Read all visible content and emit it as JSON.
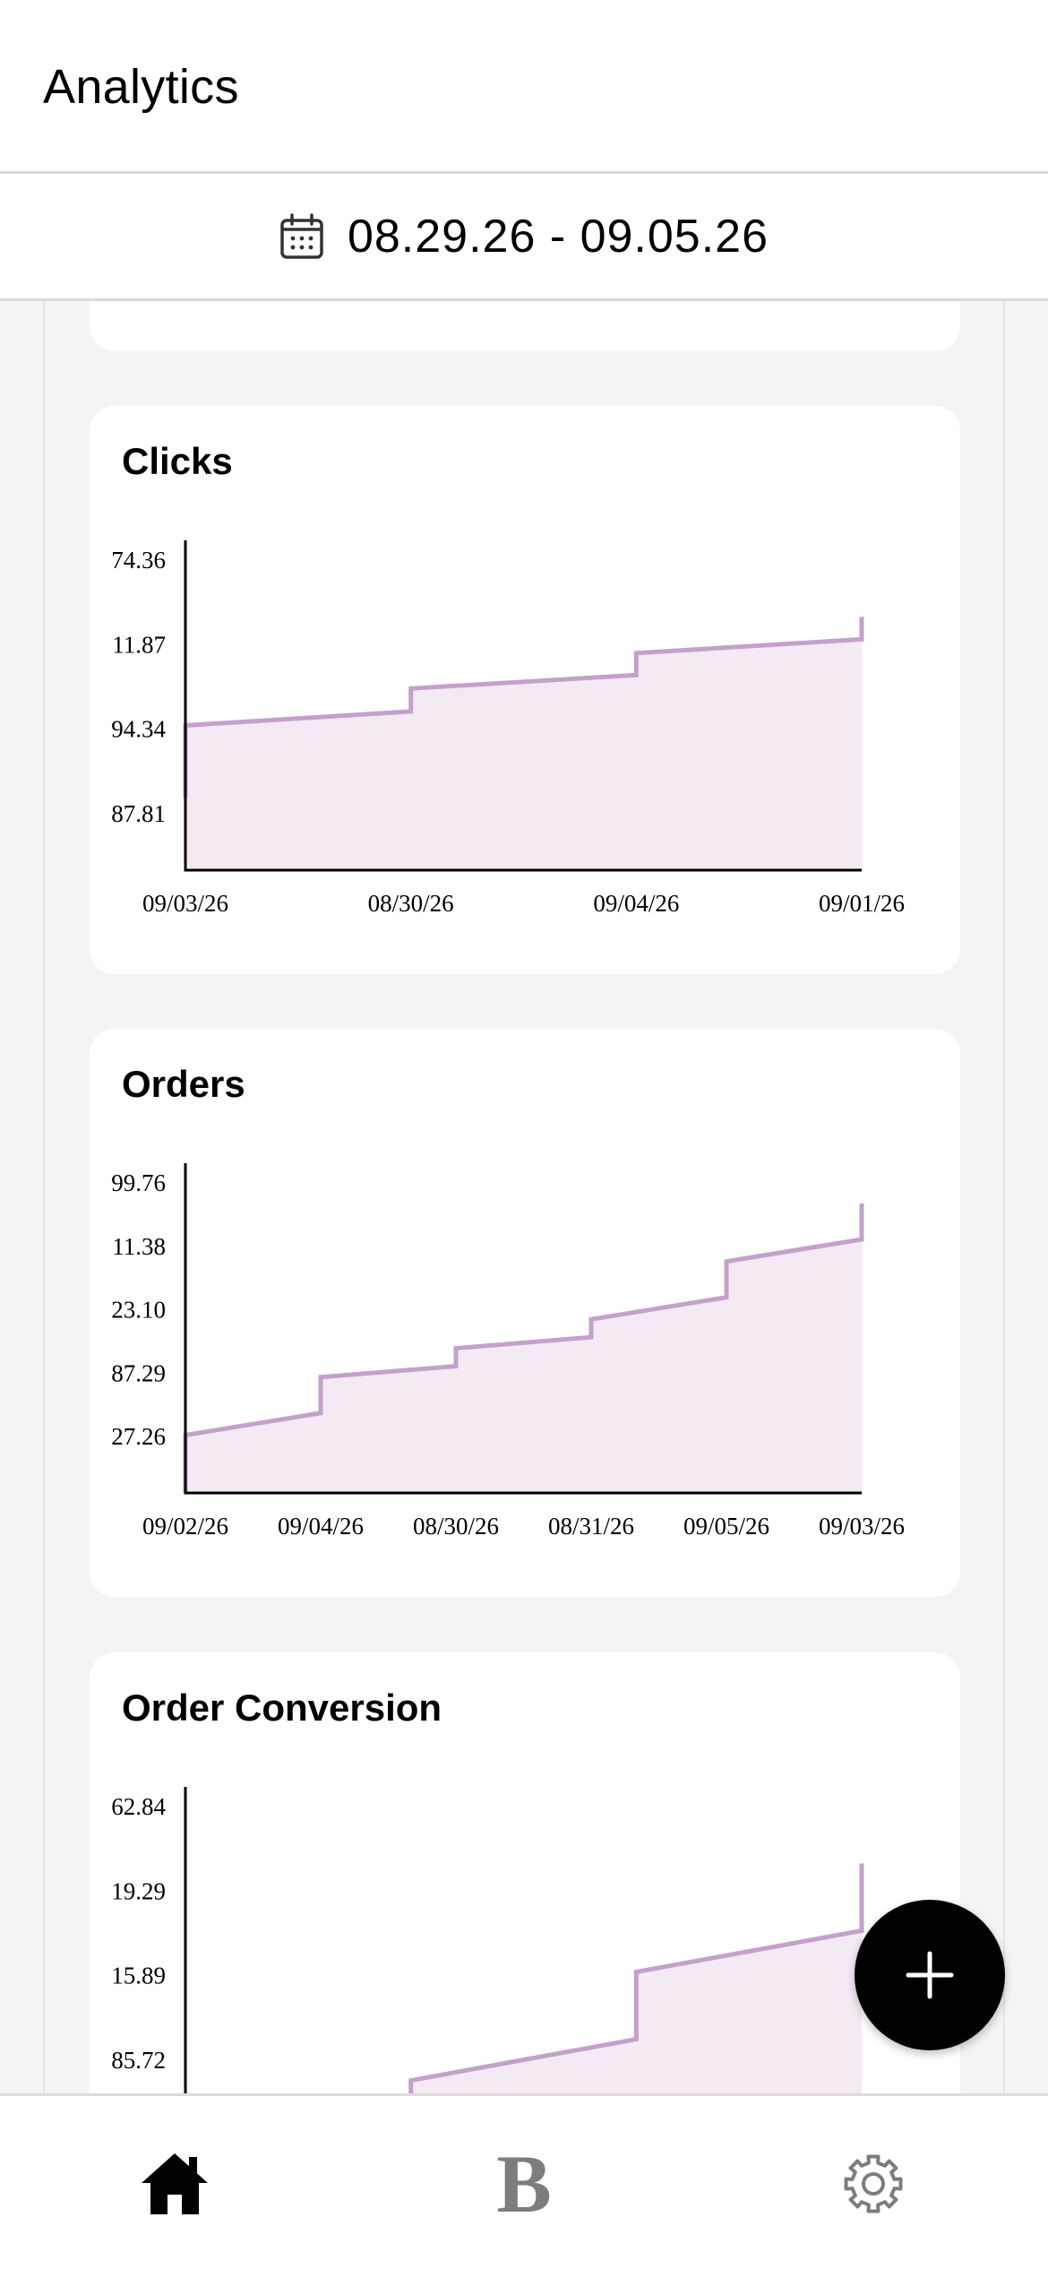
{
  "header": {
    "title": "Analytics"
  },
  "date_range": {
    "label": "08.29.26 - 09.05.26"
  },
  "charts": [
    {
      "title": "Clicks",
      "chart_data": {
        "type": "area",
        "x_labels": [
          "09/03/26",
          "08/30/26",
          "09/04/26",
          "09/01/26"
        ],
        "y_labels": [
          "74.36",
          "11.87",
          "94.34",
          "87.81"
        ],
        "series": [
          {
            "values": [
              2,
              2.51,
              3,
              3.5
            ]
          }
        ],
        "ylim": [
          0,
          4
        ]
      }
    },
    {
      "title": "Orders",
      "chart_data": {
        "type": "area",
        "x_labels": [
          "09/02/26",
          "09/04/26",
          "08/30/26",
          "08/31/26",
          "09/05/26",
          "09/03/26"
        ],
        "y_labels": [
          "99.76",
          "11.38",
          "23.10",
          "87.29",
          "27.26"
        ],
        "series": [
          {
            "values": [
              1,
              2,
              2.5,
              3,
              4,
              5
            ]
          }
        ],
        "ylim": [
          0,
          5
        ]
      }
    },
    {
      "title": "Order Conversion",
      "chart_data": {
        "type": "area",
        "x_labels": [],
        "y_labels": [
          "62.84",
          "19.29",
          "15.89",
          "85.72"
        ],
        "series": [
          {
            "values": [
              0,
              0.5,
              2,
              3.5
            ]
          }
        ],
        "ylim": [
          0,
          4
        ]
      }
    }
  ],
  "fab": {
    "icon": "plus-icon"
  },
  "bottom_nav": {
    "items": [
      {
        "name": "home",
        "icon": "home-icon",
        "active": true
      },
      {
        "name": "b",
        "label": "B",
        "icon": "b-icon",
        "active": false
      },
      {
        "name": "settings",
        "icon": "gear-icon",
        "active": false
      }
    ]
  },
  "colors": {
    "series_stroke": "#c4a1cb",
    "series_fill": "#f3eaf4",
    "background": "#f4f4f3"
  }
}
